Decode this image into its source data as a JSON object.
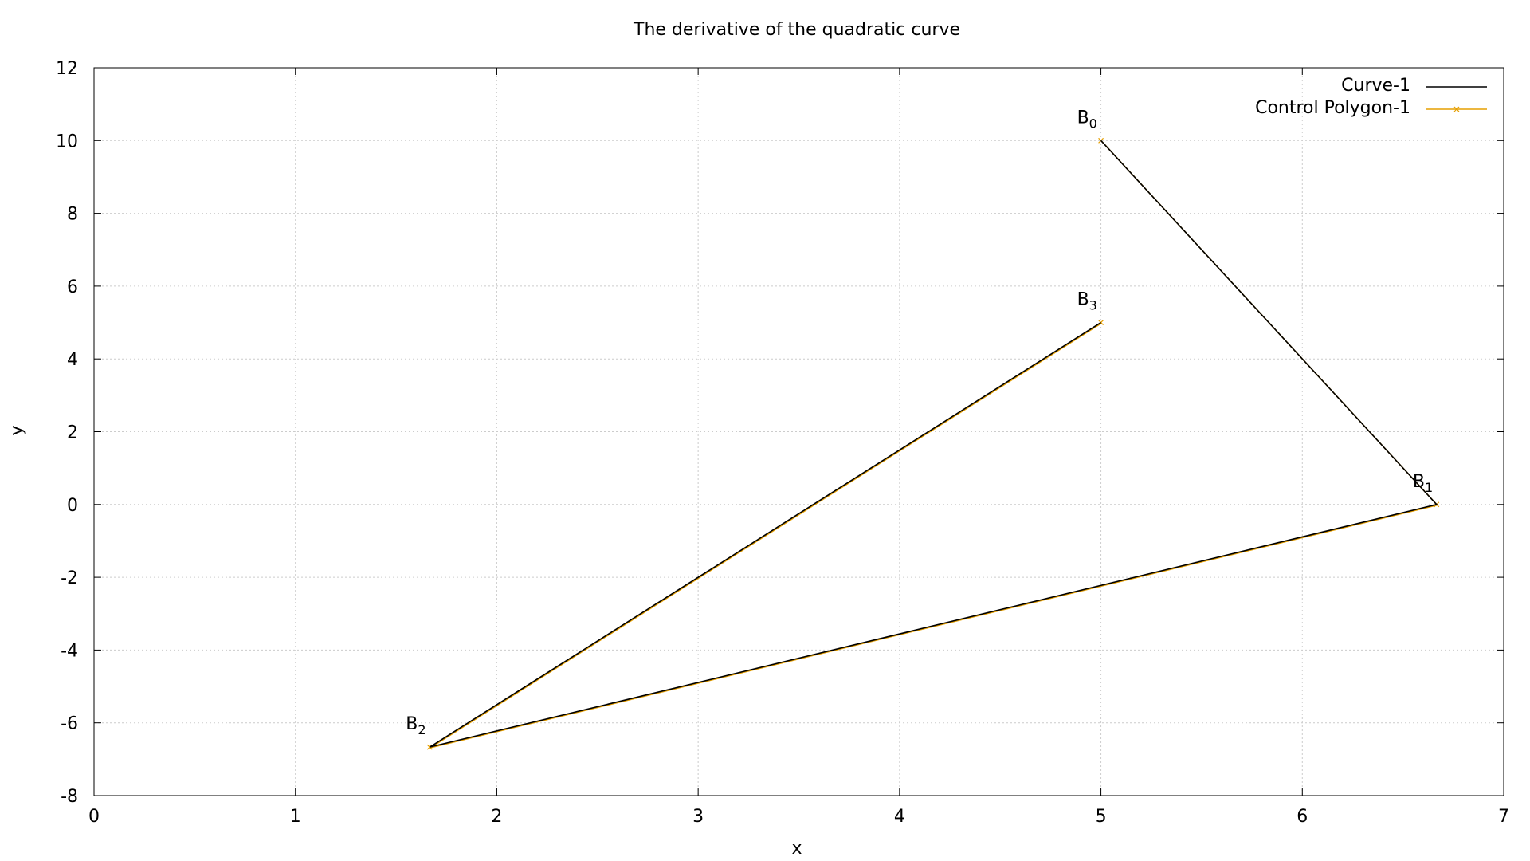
{
  "chart_data": {
    "type": "line",
    "title": "The derivative of the quadratic curve",
    "xlabel": "x",
    "ylabel": "y",
    "xlim": [
      0,
      7
    ],
    "ylim": [
      -8,
      12
    ],
    "xticks": [
      0,
      1,
      2,
      3,
      4,
      5,
      6,
      7
    ],
    "yticks": [
      -8,
      -6,
      -4,
      -2,
      0,
      2,
      4,
      6,
      8,
      10,
      12
    ],
    "grid": true,
    "legend_position": "top-right",
    "series": [
      {
        "name": "Curve-1",
        "color": "#000000",
        "marker": "none",
        "points": [
          [
            5,
            10
          ],
          [
            6.667,
            0
          ],
          [
            1.667,
            -6.667
          ],
          [
            5,
            5
          ]
        ]
      },
      {
        "name": "Control Polygon-1",
        "color": "#e69f00",
        "marker": "x",
        "points": [
          [
            5,
            10
          ],
          [
            6.667,
            0
          ],
          [
            1.667,
            -6.667
          ],
          [
            5,
            5
          ]
        ]
      }
    ],
    "annotations": [
      {
        "base": "B",
        "sub": "0",
        "x": 5,
        "y": 10
      },
      {
        "base": "B",
        "sub": "1",
        "x": 6.667,
        "y": 0
      },
      {
        "base": "B",
        "sub": "2",
        "x": 1.667,
        "y": -6.667
      },
      {
        "base": "B",
        "sub": "3",
        "x": 5,
        "y": 5
      }
    ]
  }
}
